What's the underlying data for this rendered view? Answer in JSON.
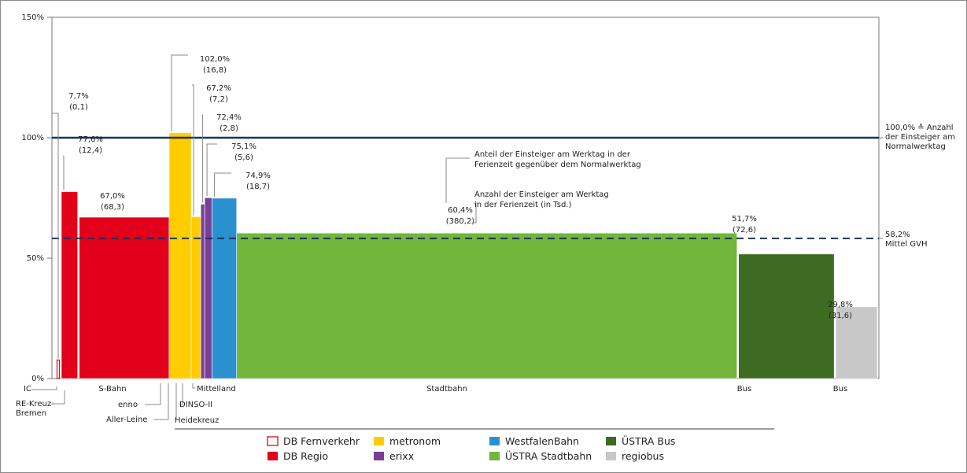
{
  "chart_data": {
    "type": "bar",
    "y_ticks": [
      "0%",
      "50%",
      "100%",
      "150%"
    ],
    "ylim": [
      0,
      150
    ],
    "grid": false,
    "bars": [
      {
        "id": "ic",
        "operator": "DB Fernverkehr",
        "category": "IC",
        "value": 7.7,
        "label_pct": "7,7%",
        "label_abs": "(0,1)",
        "width_units": 0.1,
        "hollow": true
      },
      {
        "id": "re-kreuz-bremen",
        "operator": "DB Regio",
        "category": "RE-Kreuz-Bremen",
        "value": 77.6,
        "label_pct": "77,6%",
        "label_abs": "(12,4)",
        "width_units": 12.4
      },
      {
        "id": "s-bahn",
        "operator": "DB Regio",
        "category": "S-Bahn",
        "value": 67.0,
        "label_pct": "67,0%",
        "label_abs": "(68,3)",
        "width_units": 68.3
      },
      {
        "id": "enno",
        "operator": "metronom",
        "category": "enno",
        "value": 102.0,
        "label_pct": "102,0%",
        "label_abs": "(16,8)",
        "width_units": 16.8
      },
      {
        "id": "aller-leine",
        "operator": "metronom",
        "category": "Aller-Leine",
        "value": 67.2,
        "label_pct": "67,2%",
        "label_abs": "(7,2)",
        "width_units": 7.2
      },
      {
        "id": "heidekreuz",
        "operator": "erixx",
        "category": "Heidekreuz",
        "value": 72.4,
        "label_pct": "72,4%",
        "label_abs": "(2,8)",
        "width_units": 2.8
      },
      {
        "id": "dinso-ii",
        "operator": "erixx",
        "category": "DINSO-II",
        "value": 75.1,
        "label_pct": "75,1%",
        "label_abs": "(5,6)",
        "width_units": 5.6
      },
      {
        "id": "mittelland",
        "operator": "WestfalenBahn",
        "category": "Mittelland",
        "value": 74.9,
        "label_pct": "74,9%",
        "label_abs": "(18,7)",
        "width_units": 18.7
      },
      {
        "id": "stadtbahn",
        "operator": "ÜSTRA Stadtbahn",
        "category": "Stadtbahn",
        "value": 60.4,
        "label_pct": "60,4%",
        "label_abs": "(380,2)",
        "width_units": 380.2
      },
      {
        "id": "ustra-bus",
        "operator": "ÜSTRA Bus",
        "category": "Bus",
        "value": 51.7,
        "label_pct": "51,7%",
        "label_abs": "(72,6)",
        "width_units": 72.6
      },
      {
        "id": "regiobus",
        "operator": "regiobus",
        "category": "Bus",
        "value": 29.8,
        "label_pct": "29,8%",
        "label_abs": "(31,6)",
        "width_units": 31.6
      }
    ],
    "reference_lines": [
      {
        "id": "normal",
        "value": 100.0,
        "style": "solid",
        "color": "#1b3556",
        "label_lines": [
          "100,0% ≙ Anzahl",
          "der Einsteiger am",
          "Normalwerktag"
        ]
      },
      {
        "id": "mittel",
        "value": 58.2,
        "style": "dashed",
        "color": "#1b3556",
        "label_lines": [
          "58,2%",
          "Mittel GVH"
        ]
      }
    ],
    "annotations": {
      "share_lines": [
        "Anteil der Einsteiger am Werktag in der",
        "Ferienzeit gegenüber dem Normalwerktag"
      ],
      "count_lines": [
        "Anzahl der Einsteiger am Werktag",
        "in der Ferienzeit (in Tsd.)"
      ]
    },
    "legend": {
      "placement": "bottom-center",
      "items": [
        {
          "name": "DB Fernverkehr",
          "color": "#e2001a",
          "hollow": true
        },
        {
          "name": "DB Regio",
          "color": "#e2001a"
        },
        {
          "name": "metronom",
          "color": "#ffcc00"
        },
        {
          "name": "erixx",
          "color": "#7b3f98"
        },
        {
          "name": "WestfalenBahn",
          "color": "#2b90d0"
        },
        {
          "name": "ÜSTRA Stadtbahn",
          "color": "#72b63c"
        },
        {
          "name": "ÜSTRA Bus",
          "color": "#3e6b22"
        },
        {
          "name": "regiobus",
          "color": "#c8c8c8"
        }
      ]
    },
    "operator_colors": {
      "DB Fernverkehr": "#e2001a",
      "DB Regio": "#e2001a",
      "metronom": "#ffcc00",
      "erixx": "#7b3f98",
      "WestfalenBahn": "#2b90d0",
      "ÜSTRA Stadtbahn": "#72b63c",
      "ÜSTRA Bus": "#3e6b22",
      "regiobus": "#c8c8c8"
    }
  }
}
